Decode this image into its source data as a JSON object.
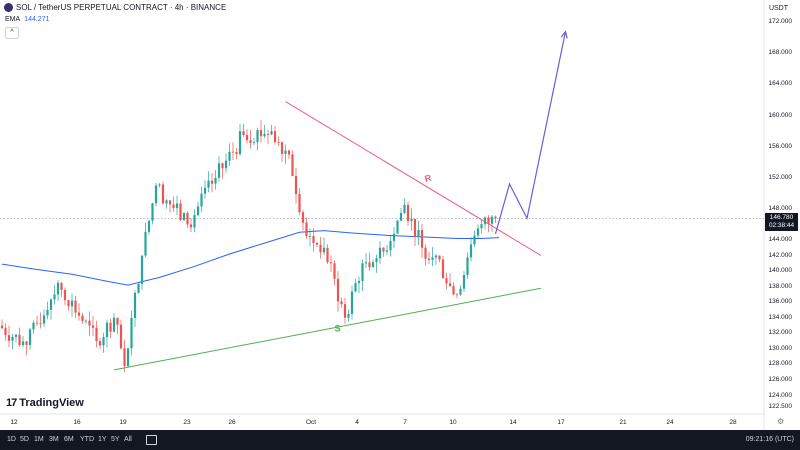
{
  "header": {
    "title": "SOL / TetherUS PERPETUAL CONTRACT · 4h · BINANCE",
    "ema_label": "EMA",
    "ema_value": "144.271",
    "collapse_glyph": "^",
    "currency": "USDT"
  },
  "price_tag": {
    "price": "146.780",
    "countdown": "02:38:44"
  },
  "chart_data": {
    "type": "candlestick",
    "y_axis": {
      "range": [
        121.0,
        174.5
      ],
      "tick_labels": [
        "122.500",
        "124.000",
        "126.000",
        "128.000",
        "130.000",
        "132.000",
        "134.000",
        "136.000",
        "138.000",
        "140.000",
        "142.000",
        "144.000",
        "148.000",
        "152.000",
        "156.000",
        "160.000",
        "164.000",
        "168.000",
        "172.000"
      ]
    },
    "x_axis": {
      "tick_labels": [
        "12",
        "16",
        "19",
        "23",
        "26",
        "Oct",
        "4",
        "7",
        "10",
        "14",
        "17",
        "21",
        "24",
        "28"
      ]
    },
    "current_price": 146.78,
    "ema_label": "EMA",
    "ema_value": 144.271,
    "segments": [
      {
        "from_bar": 0,
        "to_bar": 8,
        "start": 133,
        "end": 130.5,
        "lo": 128.5,
        "hi": 134.5
      },
      {
        "from_bar": 8,
        "to_bar": 17,
        "start": 130.5,
        "end": 138.5,
        "lo": 129.8,
        "hi": 140.0
      },
      {
        "from_bar": 17,
        "to_bar": 28,
        "start": 138.5,
        "end": 131.0,
        "lo": 130.0,
        "hi": 138.6
      },
      {
        "from_bar": 28,
        "to_bar": 33,
        "start": 131.0,
        "end": 134.0,
        "lo": 129.5,
        "hi": 134.8
      },
      {
        "from_bar": 33,
        "to_bar": 36,
        "start": 134.0,
        "end": 127.8,
        "lo": 127.0,
        "hi": 134.0
      },
      {
        "from_bar": 36,
        "to_bar": 41,
        "start": 127.8,
        "end": 142.0,
        "lo": 127.5,
        "hi": 142.5
      },
      {
        "from_bar": 41,
        "to_bar": 45,
        "start": 142.0,
        "end": 151.0,
        "lo": 141.5,
        "hi": 152.0
      },
      {
        "from_bar": 45,
        "to_bar": 54,
        "start": 151.0,
        "end": 146.0,
        "lo": 141.5,
        "hi": 151.5
      },
      {
        "from_bar": 54,
        "to_bar": 62,
        "start": 146.0,
        "end": 152.0,
        "lo": 145.0,
        "hi": 153.0
      },
      {
        "from_bar": 62,
        "to_bar": 70,
        "start": 152.0,
        "end": 157.5,
        "lo": 151.5,
        "hi": 159.0
      },
      {
        "from_bar": 70,
        "to_bar": 78,
        "start": 157.5,
        "end": 158.0,
        "lo": 155.5,
        "hi": 161.0
      },
      {
        "from_bar": 78,
        "to_bar": 83,
        "start": 158.0,
        "end": 155.0,
        "lo": 153.0,
        "hi": 159.0
      },
      {
        "from_bar": 83,
        "to_bar": 88,
        "start": 155.0,
        "end": 144.5,
        "lo": 142.5,
        "hi": 155.5
      },
      {
        "from_bar": 88,
        "to_bar": 93,
        "start": 144.5,
        "end": 143.0,
        "lo": 141.5,
        "hi": 145.5
      },
      {
        "from_bar": 93,
        "to_bar": 99,
        "start": 143.0,
        "end": 134.0,
        "lo": 132.5,
        "hi": 143.5
      },
      {
        "from_bar": 99,
        "to_bar": 104,
        "start": 134.0,
        "end": 141.0,
        "lo": 133.5,
        "hi": 141.5
      },
      {
        "from_bar": 104,
        "to_bar": 110,
        "start": 141.0,
        "end": 142.5,
        "lo": 139.0,
        "hi": 144.5
      },
      {
        "from_bar": 110,
        "to_bar": 116,
        "start": 142.5,
        "end": 148.5,
        "lo": 141.5,
        "hi": 151.5
      },
      {
        "from_bar": 116,
        "to_bar": 121,
        "start": 148.5,
        "end": 143.0,
        "lo": 141.0,
        "hi": 149.0
      },
      {
        "from_bar": 121,
        "to_bar": 125,
        "start": 143.0,
        "end": 142.0,
        "lo": 140.0,
        "hi": 145.0
      },
      {
        "from_bar": 125,
        "to_bar": 130,
        "start": 142.0,
        "end": 137.0,
        "lo": 135.5,
        "hi": 142.5
      },
      {
        "from_bar": 130,
        "to_bar": 133,
        "start": 137.0,
        "end": 139.5,
        "lo": 136.0,
        "hi": 140.0
      },
      {
        "from_bar": 133,
        "to_bar": 137,
        "start": 139.5,
        "end": 145.5,
        "lo": 139.0,
        "hi": 146.0
      },
      {
        "from_bar": 137,
        "to_bar": 142,
        "start": 145.5,
        "end": 146.8,
        "lo": 144.8,
        "hi": 147.2
      }
    ],
    "ema_points": [
      [
        0,
        140.9
      ],
      [
        10,
        140.2
      ],
      [
        20,
        139.6
      ],
      [
        30,
        138.7
      ],
      [
        36,
        138.2
      ],
      [
        45,
        139.2
      ],
      [
        55,
        140.6
      ],
      [
        65,
        142.2
      ],
      [
        75,
        143.6
      ],
      [
        85,
        145.0
      ],
      [
        92,
        145.2
      ],
      [
        100,
        144.9
      ],
      [
        110,
        144.6
      ],
      [
        120,
        144.4
      ],
      [
        130,
        144.2
      ],
      [
        137,
        144.2
      ],
      [
        142,
        144.3
      ]
    ],
    "drawings": {
      "resistance": {
        "label": "R",
        "color": "#ef5e82",
        "from": [
          81,
          161.8
        ],
        "to": [
          154,
          142.0
        ]
      },
      "support": {
        "label": "S",
        "color": "#4caf50",
        "from": [
          32,
          127.3
        ],
        "to": [
          154,
          137.8
        ]
      },
      "projection": {
        "color": "#7059d8",
        "points": [
          [
            141,
            144.8
          ],
          [
            145,
            151.2
          ],
          [
            150,
            146.8
          ],
          [
            161,
            170.8
          ]
        ]
      }
    },
    "colors": {
      "up": "#26a69a",
      "down": "#ef5350",
      "ema": "#2962ff"
    }
  },
  "logo": {
    "mark": "17",
    "text": "TradingView"
  },
  "bottom": {
    "timeframes": [
      "1D",
      "5D",
      "1M",
      "3M",
      "6M",
      "YTD",
      "1Y",
      "5Y",
      "All"
    ],
    "clock": "09:21:16 (UTC)"
  }
}
